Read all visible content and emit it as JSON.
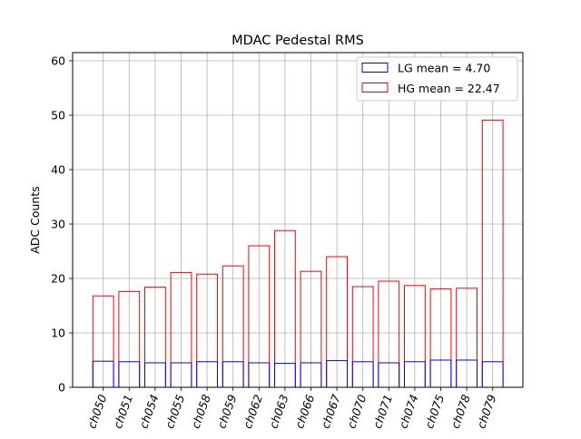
{
  "chart_data": {
    "type": "bar",
    "title": "MDAC Pedestal RMS",
    "xlabel": "",
    "ylabel": "ADC Counts",
    "ylim": [
      0,
      61.5
    ],
    "yticks": [
      0,
      10,
      20,
      30,
      40,
      50,
      60
    ],
    "grid": true,
    "legend_position": "top-right",
    "categories": [
      "ch050",
      "ch051",
      "ch054",
      "ch055",
      "ch058",
      "ch059",
      "ch062",
      "ch063",
      "ch066",
      "ch067",
      "ch070",
      "ch071",
      "ch074",
      "ch075",
      "ch078",
      "ch079"
    ],
    "series": [
      {
        "name": "LG mean = 4.70",
        "color": "#0000ff",
        "values": [
          4.8,
          4.7,
          4.5,
          4.5,
          4.7,
          4.7,
          4.5,
          4.4,
          4.5,
          4.9,
          4.7,
          4.5,
          4.7,
          5.0,
          5.0,
          4.7
        ]
      },
      {
        "name": "HG mean = 22.47",
        "color": "#ff0000",
        "values": [
          16.8,
          17.6,
          18.4,
          21.1,
          20.8,
          22.3,
          26.0,
          28.8,
          21.3,
          24.0,
          18.5,
          19.5,
          18.7,
          18.1,
          18.2,
          49.1
        ]
      }
    ]
  }
}
